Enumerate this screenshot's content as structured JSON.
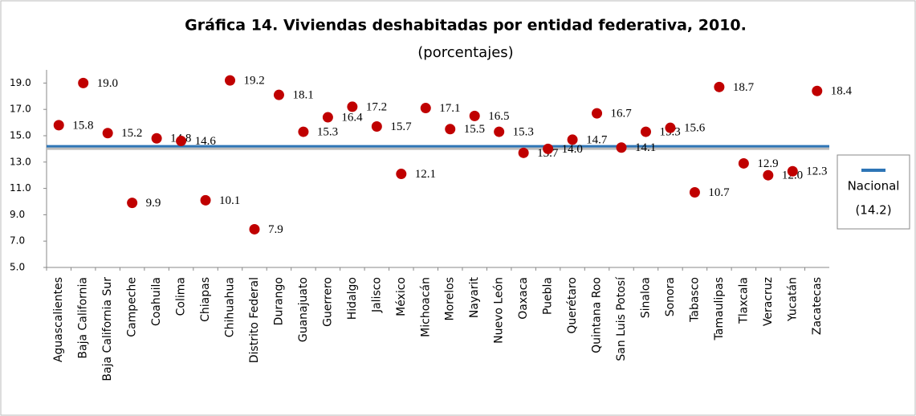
{
  "chart_data": {
    "type": "dot",
    "title": "Gráfica 14. Viviendas deshabitadas por entidad federativa, 2010.",
    "subtitle": "(porcentajes)",
    "categories": [
      "Aguascalientes",
      "Baja California",
      "Baja California Sur",
      "Campeche",
      "Coahuila",
      "Colima",
      "Chiapas",
      "Chihuahua",
      "Distrito Federal",
      "Durango",
      "Guanajuato",
      "Guerrero",
      "Hidalgo",
      "Jalisco",
      "México",
      "Michoacán",
      "Morelos",
      "Nayarit",
      "Nuevo León",
      "Oaxaca",
      "Puebla",
      "Querétaro",
      "Quintana Roo",
      "San Luis Potosí",
      "Sinaloa",
      "Sonora",
      "Tabasco",
      "Tamaulipas",
      "Tlaxcala",
      "Veracruz",
      "Yucatán",
      "Zacatecas"
    ],
    "values": [
      15.8,
      19.0,
      15.2,
      9.9,
      14.8,
      14.6,
      10.1,
      19.2,
      7.9,
      18.1,
      15.3,
      16.4,
      17.2,
      15.7,
      12.1,
      17.1,
      15.5,
      16.5,
      15.3,
      13.7,
      14.0,
      14.7,
      16.7,
      14.1,
      15.3,
      15.6,
      10.7,
      18.7,
      12.9,
      12.0,
      12.3,
      18.4
    ],
    "value_labels": [
      "15.8",
      "19.0",
      "15.2",
      "9.9",
      "14.8",
      "14.6",
      "10.1",
      "19.2",
      "7.9",
      "18.1",
      "15.3",
      "16.4",
      "17.2",
      "15.7",
      "12.1",
      "17.1",
      "15.5",
      "16.5",
      "15.3",
      "13.7",
      "14.0",
      "14.7",
      "16.7",
      "14.1",
      "15.3",
      "15.6",
      "10.7",
      "18.7",
      "12.9",
      "12.0",
      "12.3",
      "18.4"
    ],
    "color": "#c00000",
    "reference": {
      "name": "Nacional",
      "value": 14.2,
      "label": "(14.2)",
      "color": "#2e75b6"
    },
    "ylim": [
      5,
      20
    ],
    "yticks": [
      {
        "value": 5,
        "label": "5.0"
      },
      {
        "value": 7,
        "label": "7.0"
      },
      {
        "value": 9,
        "label": "9.0"
      },
      {
        "value": 11,
        "label": "11.0"
      },
      {
        "value": 13,
        "label": "13.0"
      },
      {
        "value": 15,
        "label": "15.0"
      },
      {
        "value": 17,
        "label": "17.0"
      },
      {
        "value": 19,
        "label": "19.0"
      }
    ]
  }
}
